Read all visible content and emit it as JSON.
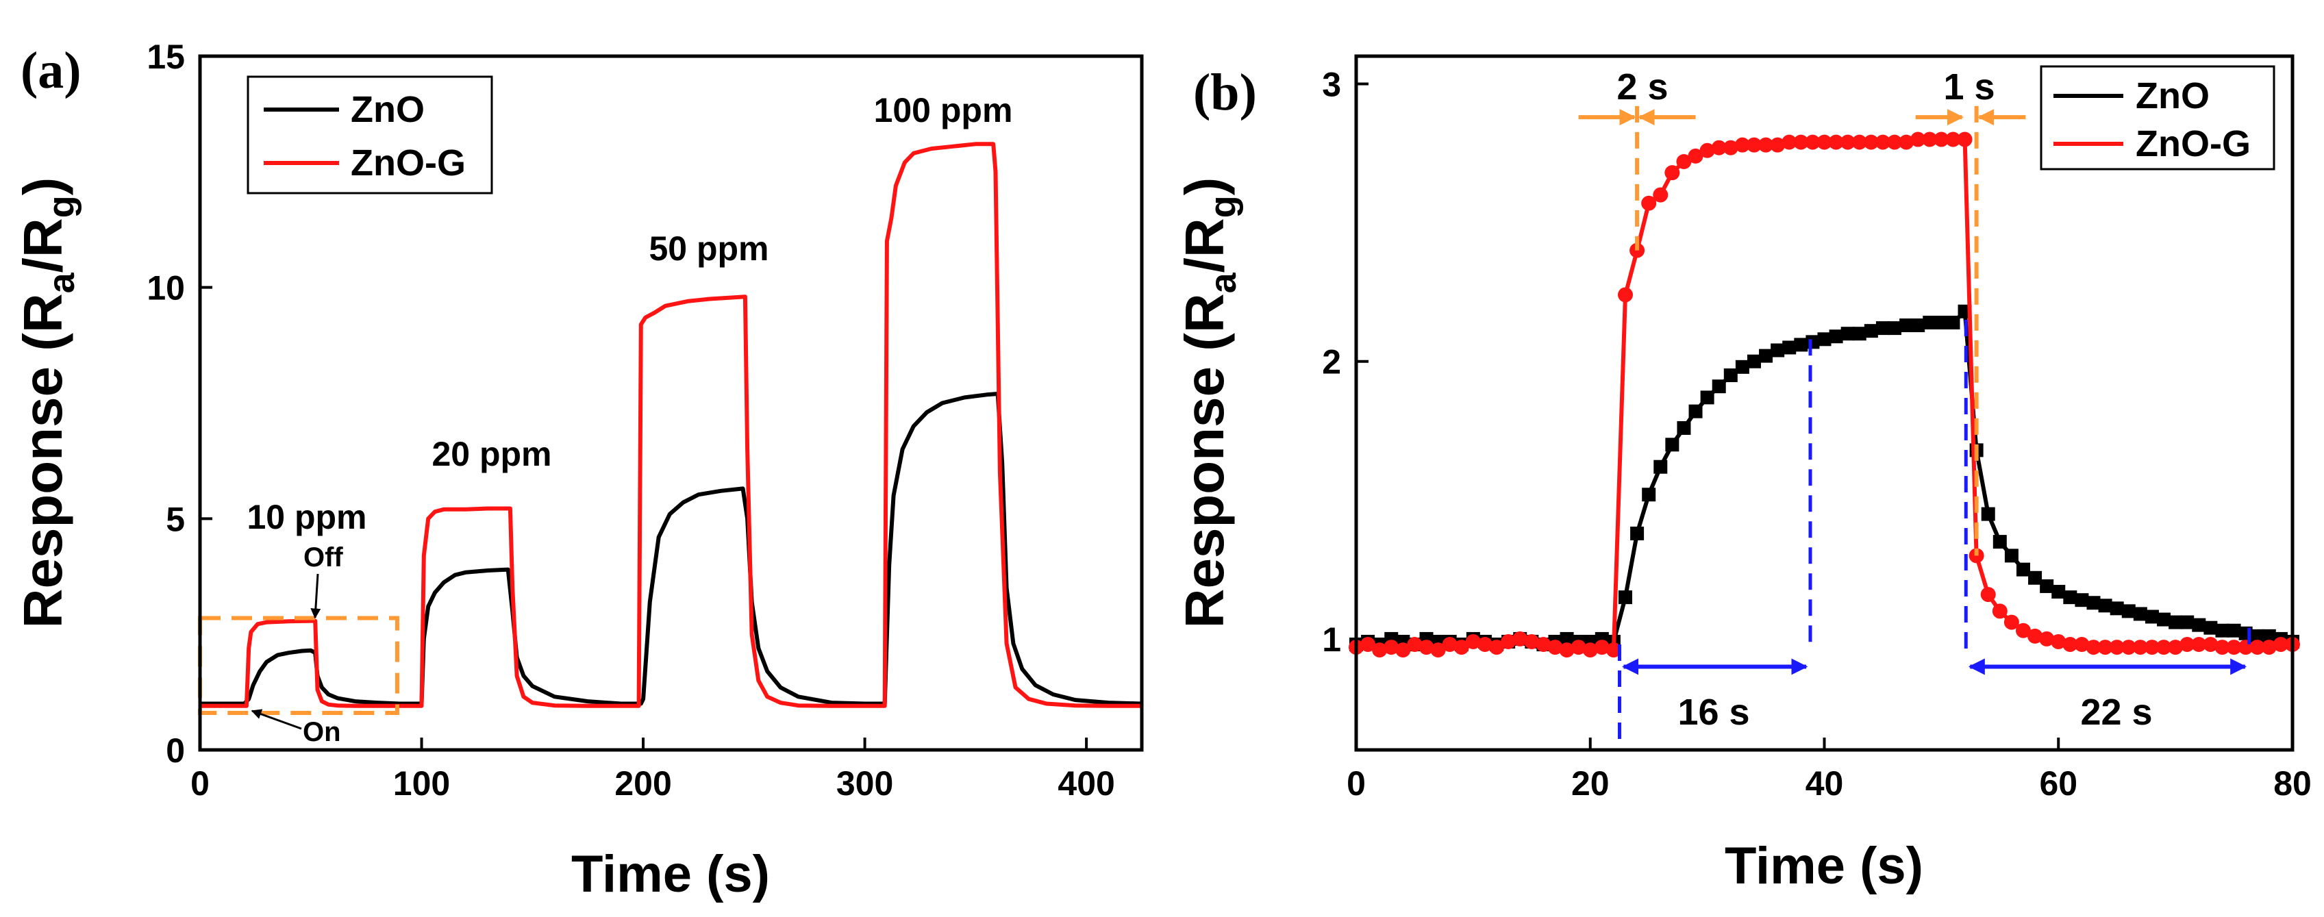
{
  "chart_data": [
    {
      "type": "line",
      "panel_label": "(a)",
      "title": "",
      "xlabel": "Time (s)",
      "ylabel": "Response (R",
      "ylabel_sub_a": "a",
      "ylabel_slash": "/R",
      "ylabel_sub_g": "g",
      "ylabel_close": ")",
      "xlim": [
        0,
        425
      ],
      "ylim": [
        0,
        15
      ],
      "xticks": [
        0,
        100,
        200,
        300,
        400
      ],
      "yticks": [
        0,
        5,
        10,
        15
      ],
      "xtick_labels": [
        "0",
        "100",
        "200",
        "300",
        "400"
      ],
      "ytick_labels": [
        "0",
        "5",
        "10",
        "15"
      ],
      "legend_position": "top-left",
      "grid": false,
      "colors": {
        "ZnO": "#000000",
        "ZnO-G": "#ff1414",
        "box": "#ff9933"
      },
      "series": [
        {
          "name": "ZnO",
          "color": "#000000",
          "x": [
            0,
            20,
            22,
            24,
            27,
            30,
            35,
            40,
            46,
            50,
            52,
            53,
            55,
            58,
            62,
            70,
            80,
            90,
            100,
            101,
            103,
            106,
            110,
            115,
            120,
            130,
            139,
            141,
            143,
            146,
            150,
            160,
            175,
            190,
            199,
            200,
            203,
            207,
            212,
            218,
            225,
            235,
            245,
            247,
            249,
            252,
            256,
            262,
            270,
            285,
            300,
            309,
            311,
            313,
            317,
            322,
            328,
            335,
            345,
            355,
            360,
            362,
            364,
            367,
            371,
            377,
            385,
            395,
            410,
            425
          ],
          "y": [
            1.0,
            1.0,
            1.1,
            1.4,
            1.7,
            1.9,
            2.05,
            2.1,
            2.14,
            2.15,
            2.1,
            1.6,
            1.35,
            1.2,
            1.12,
            1.05,
            1.02,
            1.0,
            1.0,
            2.4,
            3.1,
            3.4,
            3.62,
            3.78,
            3.84,
            3.88,
            3.9,
            3.0,
            2.0,
            1.6,
            1.38,
            1.15,
            1.05,
            1.0,
            1.0,
            1.1,
            3.2,
            4.6,
            5.1,
            5.35,
            5.52,
            5.6,
            5.65,
            5.0,
            3.2,
            2.2,
            1.7,
            1.35,
            1.15,
            1.02,
            1.0,
            1.0,
            4.0,
            5.5,
            6.5,
            7.0,
            7.3,
            7.5,
            7.62,
            7.68,
            7.7,
            6.2,
            3.5,
            2.3,
            1.75,
            1.4,
            1.2,
            1.08,
            1.02,
            1.0
          ]
        },
        {
          "name": "ZnO-G",
          "color": "#ff1414",
          "x": [
            0,
            21,
            22,
            23,
            26,
            30,
            40,
            50,
            52,
            53,
            55,
            58,
            62,
            70,
            80,
            90,
            100,
            101,
            103,
            106,
            110,
            120,
            130,
            140,
            141,
            143,
            146,
            150,
            160,
            175,
            190,
            198,
            199,
            201,
            205,
            210,
            220,
            230,
            240,
            246,
            247,
            249,
            252,
            256,
            262,
            270,
            285,
            300,
            309,
            310,
            312,
            314,
            318,
            322,
            330,
            340,
            350,
            358,
            359,
            361,
            364,
            368,
            374,
            382,
            395,
            410,
            425
          ],
          "y": [
            0.95,
            0.95,
            2.2,
            2.55,
            2.72,
            2.76,
            2.78,
            2.79,
            2.79,
            1.3,
            1.05,
            0.98,
            0.96,
            0.95,
            0.95,
            0.95,
            0.95,
            4.2,
            5.0,
            5.15,
            5.2,
            5.2,
            5.22,
            5.22,
            3.5,
            1.6,
            1.15,
            1.02,
            0.96,
            0.95,
            0.95,
            0.95,
            9.2,
            9.35,
            9.45,
            9.6,
            9.7,
            9.75,
            9.78,
            9.8,
            6.5,
            2.5,
            1.5,
            1.15,
            1.02,
            0.96,
            0.95,
            0.95,
            0.95,
            11.0,
            11.5,
            12.2,
            12.7,
            12.9,
            13.0,
            13.05,
            13.1,
            13.1,
            12.5,
            6.0,
            2.3,
            1.35,
            1.1,
            1.0,
            0.96,
            0.95,
            0.95
          ]
        }
      ],
      "annotations": [
        {
          "text": "10 ppm",
          "x": 48,
          "y": 4.9
        },
        {
          "text": "20 ppm",
          "x": 125,
          "y": 6.3
        },
        {
          "text": "50 ppm",
          "x": 224,
          "y": 10.7
        },
        {
          "text": "100 ppm",
          "x": 336,
          "y": 13.9
        },
        {
          "text": "Off",
          "x": 57,
          "y": 4.0
        },
        {
          "text": "On",
          "x": 55,
          "y": 0.3
        }
      ],
      "highlight_box": {
        "x": [
          0,
          89
        ],
        "y": [
          0.8,
          2.85
        ]
      }
    },
    {
      "type": "line",
      "panel_label": "(b)",
      "title": "",
      "xlabel": "Time (s)",
      "ylabel": "Response (R",
      "ylabel_sub_a": "a",
      "ylabel_slash": "/R",
      "ylabel_sub_g": "g",
      "ylabel_close": ")",
      "xlim": [
        0,
        80
      ],
      "ylim": [
        0.6,
        3.1
      ],
      "xticks": [
        0,
        20,
        40,
        60,
        80
      ],
      "yticks": [
        1,
        2,
        3
      ],
      "xtick_labels": [
        "0",
        "20",
        "40",
        "60",
        "80"
      ],
      "ytick_labels": [
        "1",
        "2",
        "3"
      ],
      "legend_position": "top-right",
      "grid": false,
      "colors": {
        "ZnO": "#000000",
        "ZnO-G": "#ff1414",
        "orange": "#ff9933",
        "blue": "#1a1aff"
      },
      "series": [
        {
          "name": "ZnO",
          "color": "#000000",
          "marker": "square",
          "x": [
            0,
            1,
            2,
            3,
            4,
            5,
            6,
            7,
            8,
            9,
            10,
            11,
            12,
            13,
            14,
            15,
            16,
            17,
            18,
            19,
            20,
            21,
            22,
            23,
            24,
            25,
            26,
            27,
            28,
            29,
            30,
            31,
            32,
            33,
            34,
            35,
            36,
            37,
            38,
            39,
            40,
            41,
            42,
            43,
            44,
            45,
            46,
            47,
            48,
            49,
            50,
            51,
            52,
            53,
            54,
            55,
            56,
            57,
            58,
            59,
            60,
            61,
            62,
            63,
            64,
            65,
            66,
            67,
            68,
            69,
            70,
            71,
            72,
            73,
            74,
            75,
            76,
            77,
            78,
            79,
            80
          ],
          "y": [
            0.98,
            0.99,
            0.98,
            1.0,
            0.99,
            0.98,
            1.0,
            0.99,
            0.99,
            0.98,
            1.0,
            0.99,
            0.98,
            0.99,
            1.0,
            0.99,
            0.98,
            0.99,
            1.0,
            0.99,
            0.99,
            1.0,
            0.99,
            1.15,
            1.38,
            1.52,
            1.62,
            1.7,
            1.76,
            1.82,
            1.87,
            1.91,
            1.95,
            1.98,
            2.0,
            2.02,
            2.04,
            2.05,
            2.06,
            2.07,
            2.08,
            2.09,
            2.1,
            2.1,
            2.11,
            2.12,
            2.12,
            2.13,
            2.13,
            2.14,
            2.14,
            2.14,
            2.18,
            1.68,
            1.45,
            1.35,
            1.3,
            1.25,
            1.22,
            1.19,
            1.17,
            1.15,
            1.14,
            1.13,
            1.12,
            1.11,
            1.1,
            1.09,
            1.08,
            1.07,
            1.06,
            1.06,
            1.05,
            1.04,
            1.03,
            1.03,
            1.02,
            1.01,
            1.01,
            1.0,
            0.99
          ]
        },
        {
          "name": "ZnO-G",
          "color": "#ff1414",
          "marker": "circle",
          "x": [
            0,
            1,
            2,
            3,
            4,
            5,
            6,
            7,
            8,
            9,
            10,
            11,
            12,
            13,
            14,
            15,
            16,
            17,
            18,
            19,
            20,
            21,
            22,
            23,
            24,
            25,
            26,
            27,
            28,
            29,
            30,
            31,
            32,
            33,
            34,
            35,
            36,
            37,
            38,
            39,
            40,
            41,
            42,
            43,
            44,
            45,
            46,
            47,
            48,
            49,
            50,
            51,
            52,
            53,
            54,
            55,
            56,
            57,
            58,
            59,
            60,
            61,
            62,
            63,
            64,
            65,
            66,
            67,
            68,
            69,
            70,
            71,
            72,
            73,
            74,
            75,
            76,
            77,
            78,
            79,
            80
          ],
          "y": [
            0.97,
            0.98,
            0.96,
            0.97,
            0.96,
            0.98,
            0.97,
            0.96,
            0.98,
            0.97,
            0.99,
            0.98,
            0.97,
            0.99,
            1.0,
            0.99,
            0.98,
            0.97,
            0.96,
            0.97,
            0.96,
            0.97,
            0.96,
            2.24,
            2.4,
            2.57,
            2.6,
            2.68,
            2.72,
            2.74,
            2.76,
            2.77,
            2.77,
            2.78,
            2.78,
            2.78,
            2.78,
            2.79,
            2.79,
            2.79,
            2.79,
            2.79,
            2.79,
            2.79,
            2.79,
            2.79,
            2.79,
            2.79,
            2.8,
            2.8,
            2.8,
            2.8,
            2.8,
            1.3,
            1.16,
            1.1,
            1.06,
            1.03,
            1.01,
            1.0,
            0.99,
            0.98,
            0.98,
            0.97,
            0.97,
            0.97,
            0.97,
            0.97,
            0.97,
            0.97,
            0.97,
            0.98,
            0.98,
            0.98,
            0.97,
            0.97,
            0.97,
            0.97,
            0.97,
            0.98,
            0.98
          ]
        }
      ],
      "annotations": [
        {
          "text": "2 s",
          "x": 24,
          "y": 2.93
        },
        {
          "text": "1 s",
          "x": 52.2,
          "y": 2.93
        },
        {
          "text": "16 s",
          "x": 30.5,
          "y": 0.8
        },
        {
          "text": "22 s",
          "x": 65,
          "y": 0.8
        }
      ],
      "markers": {
        "orange_left_x": 24,
        "orange_right_x": 53,
        "blue_left_x": 22.5,
        "blue_right_x": 38.8,
        "blue2_left_x": 52.1,
        "blue2_right_x": 76.3
      }
    }
  ]
}
